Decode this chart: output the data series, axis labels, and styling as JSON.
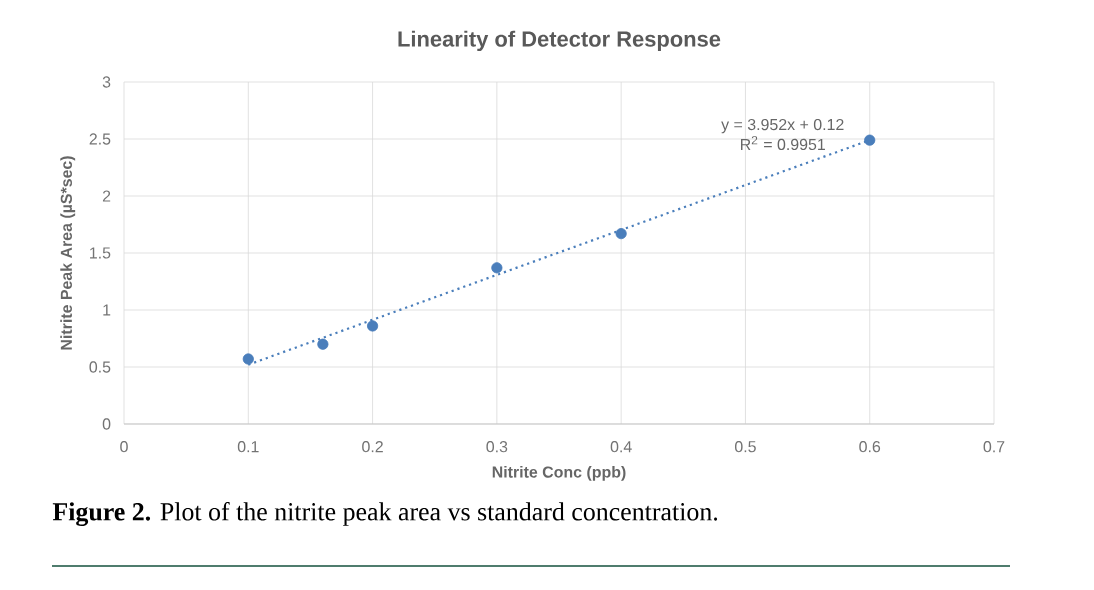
{
  "chart_data": {
    "type": "scatter",
    "title": "Linearity of Detector Response",
    "xlabel": "Nitrite Conc (ppb)",
    "ylabel": "Nitrite Peak Area (µS*sec)",
    "series": [
      {
        "color": "#4a7ebb",
        "marker": "circle",
        "x": [
          0.1,
          0.16,
          0.2,
          0.3,
          0.4,
          0.6
        ],
        "values": [
          0.57,
          0.7,
          0.86,
          1.37,
          1.67,
          2.49
        ]
      },
      {
        "type": "line",
        "color": "#4a7ebb",
        "line_style": "dotted",
        "marker": "none",
        "x": [
          0.1,
          0.6
        ],
        "values": [
          0.52,
          2.49
        ]
      }
    ],
    "xlim": [
      0,
      0.7
    ],
    "xticks": [
      0,
      0.1,
      0.2,
      0.3,
      0.4,
      0.5,
      0.6,
      0.7
    ],
    "ylim": [
      0,
      3
    ],
    "yticks": [
      0,
      0.5,
      1,
      1.5,
      2,
      2.5,
      3
    ],
    "grid": true,
    "annotations": [
      "y = 3.952x + 0.12",
      "R$^{2}$ = 0.9951",
      "**Figure 2.** Plot of the nitrite peak area vs standard concentration."
    ]
  }
}
